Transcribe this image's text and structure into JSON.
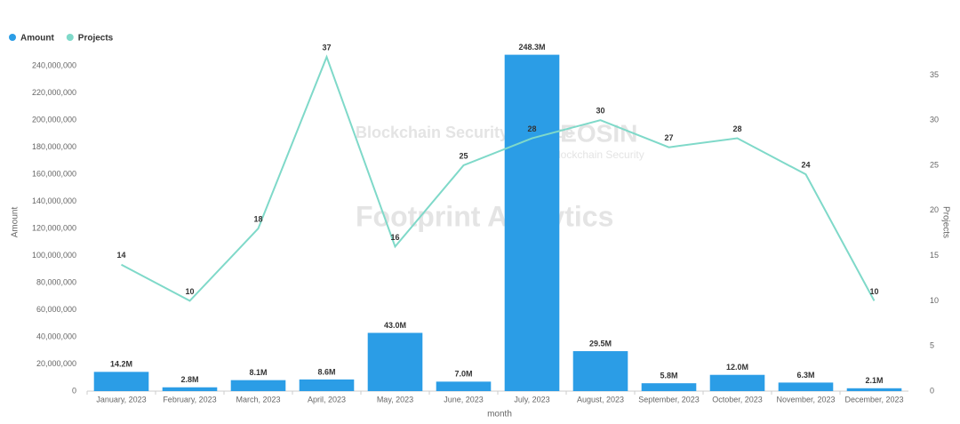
{
  "chart_data": {
    "type": "bar-line",
    "legend": "top-left",
    "x_label": "month",
    "y_label": "Amount",
    "y2_label": "Projects",
    "grid": false,
    "categories": [
      "January, 2023",
      "February, 2023",
      "March, 2023",
      "April, 2023",
      "May, 2023",
      "June, 2023",
      "July, 2023",
      "August, 2023",
      "September, 2023",
      "October, 2023",
      "November, 2023",
      "December, 2023"
    ],
    "series": [
      {
        "name": "Amount",
        "type": "bar",
        "color": "#2b9de6",
        "values": [
          14200000,
          2800000,
          8100000,
          8600000,
          43000000,
          7000000,
          248300000,
          29500000,
          5800000,
          12000000,
          6300000,
          2100000
        ],
        "value_labels": [
          "14.2M",
          "2.8M",
          "8.1M",
          "8.6M",
          "43.0M",
          "7.0M",
          "248.3M",
          "29.5M",
          "5.8M",
          "12.0M",
          "6.3M",
          "2.1M"
        ]
      },
      {
        "name": "Projects",
        "type": "line",
        "axis": "y2",
        "color": "#7fd9c9",
        "values": [
          14,
          10,
          18,
          37,
          16,
          25,
          28,
          30,
          27,
          28,
          24,
          10
        ]
      }
    ],
    "ylim": [
      0,
      250000000
    ],
    "yticks": [
      0,
      {
        "value": 20000000,
        "label": "20,000,000"
      },
      {
        "value": 40000000,
        "label": "40,000,000"
      },
      {
        "value": 60000000,
        "label": "60,000,000"
      },
      {
        "value": 80000000,
        "label": "80,000,000"
      },
      {
        "value": 100000000,
        "label": "100,000,000"
      },
      {
        "value": 120000000,
        "label": "120,000,000"
      },
      {
        "value": 140000000,
        "label": "140,000,000"
      },
      {
        "value": 160000000,
        "label": "160,000,000"
      },
      {
        "value": 180000000,
        "label": "180,000,000"
      },
      {
        "value": 200000000,
        "label": "200,000,000"
      },
      {
        "value": 220000000,
        "label": "220,000,000"
      },
      {
        "value": 240000000,
        "label": "240,000,000"
      }
    ],
    "y2lim": [
      0,
      37.5
    ],
    "y2ticks": [
      0,
      5,
      10,
      15,
      20,
      25,
      30,
      35
    ],
    "watermarks": [
      "Blockchain Security Alliance",
      "BEOSIN",
      "Blockchain Security",
      "Footprint Analytics"
    ]
  }
}
